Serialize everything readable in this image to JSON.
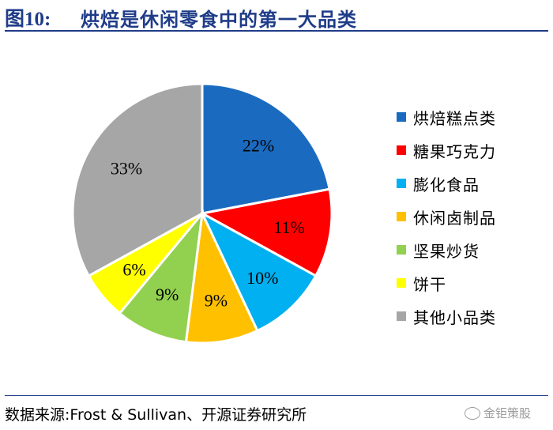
{
  "header": {
    "figure_number": "图10:",
    "figure_title": "烘焙是休闲零食中的第一大品类"
  },
  "chart_data": {
    "type": "pie",
    "unit": "%",
    "series": [
      {
        "label": "烘焙糕点类",
        "value": 22,
        "value_label": "22%",
        "color": "#1a6bc0"
      },
      {
        "label": "糖果巧克力",
        "value": 11,
        "value_label": "11%",
        "color": "#ff0000"
      },
      {
        "label": "膨化食品",
        "value": 10,
        "value_label": "10%",
        "color": "#00b0f0"
      },
      {
        "label": "休闲卤制品",
        "value": 9,
        "value_label": "9%",
        "color": "#ffc000"
      },
      {
        "label": "坚果炒货",
        "value": 9,
        "value_label": "9%",
        "color": "#92d050"
      },
      {
        "label": "饼干",
        "value": 6,
        "value_label": "6%",
        "color": "#ffff00"
      },
      {
        "label": "其他小品类",
        "value": 33,
        "value_label": "33%",
        "color": "#a6a6a6"
      }
    ],
    "legend_position": "right"
  },
  "footer": {
    "source": "数据来源:Frost & Sullivan、开源证券研究所",
    "watermark": "金钜策股"
  }
}
